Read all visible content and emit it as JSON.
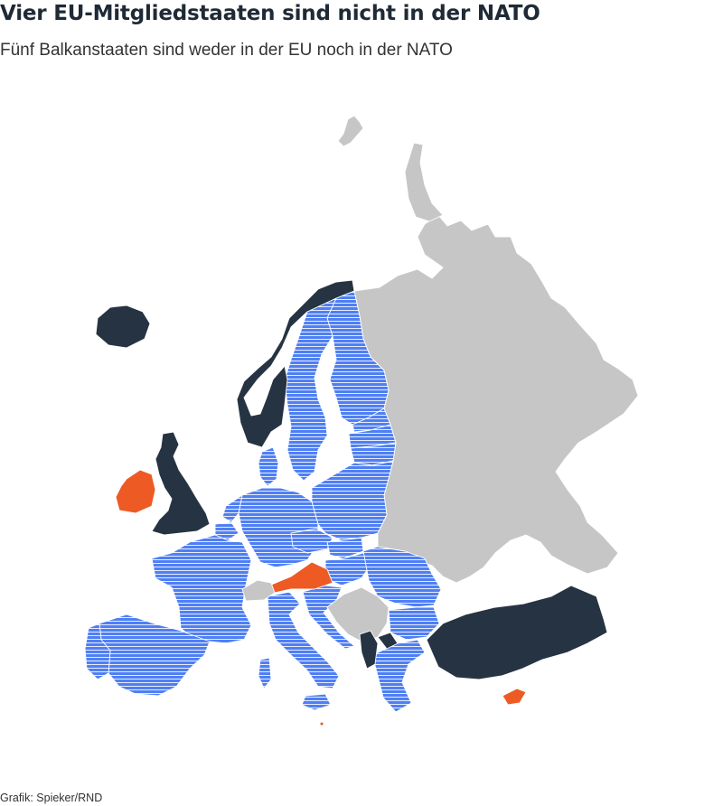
{
  "title": "Vier EU-Mitgliedstaaten sind nicht in der NATO",
  "subtitle": "Fünf Balkanstaaten sind weder in der EU noch in der NATO",
  "credit": "Grafik: Spieker/RND",
  "colors": {
    "eu_and_nato": "#4f7ff4",
    "eu_and_nato_stripe": "#ffffff",
    "nato_only": "#263342",
    "eu_only": "#ee5a24",
    "neither": "#c6c6c6",
    "background": "#ffffff"
  },
  "categories": {
    "eu_and_nato": [
      "Portugal",
      "Spanien",
      "Frankreich",
      "Belgien",
      "Niederlande",
      "Luxemburg",
      "Deutschland",
      "Dänemark",
      "Schweden",
      "Finnland",
      "Estland",
      "Lettland",
      "Litauen",
      "Polen",
      "Tschechien",
      "Slowakei",
      "Ungarn",
      "Slowenien",
      "Kroatien",
      "Italien",
      "Rumänien",
      "Bulgarien",
      "Griechenland"
    ],
    "nato_only": [
      "Island",
      "Norwegen",
      "Vereinigtes Königreich",
      "Türkei",
      "Albanien",
      "Montenegro",
      "Nordmazedonien"
    ],
    "eu_only": [
      "Irland",
      "Österreich",
      "Zypern",
      "Malta"
    ],
    "neither": [
      "Schweiz",
      "Serbien",
      "Bosnien und Herzegowina",
      "Kosovo",
      "Belarus",
      "Ukraine",
      "Moldau",
      "Russland"
    ]
  }
}
